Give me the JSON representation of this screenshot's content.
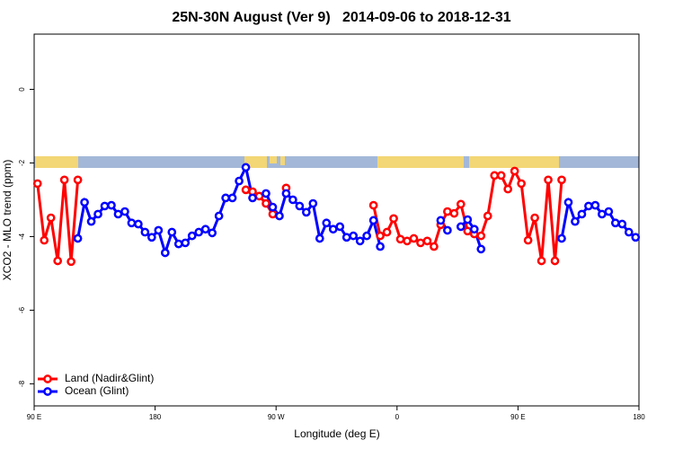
{
  "chart_data": {
    "type": "line",
    "title": "25N-30N August (Ver 9)   2014-09-06 to 2018-12-31",
    "x_label": "Longitude (deg E)",
    "y_label": "XCO2 - MLO trend (ppm)",
    "x": [
      92.5,
      97.5,
      102.5,
      107.5,
      112.5,
      117.5,
      122.5,
      127.5,
      132.5,
      137.5,
      142.5,
      147.5,
      152.5,
      157.5,
      162.5,
      167.5,
      172.5,
      177.5,
      182.5,
      187.5,
      192.5,
      197.5,
      202.5,
      207.5,
      212.5,
      217.5,
      222.5,
      227.5,
      232.5,
      237.5,
      242.5,
      247.5,
      252.5,
      257.5,
      262.5,
      267.5,
      272.5,
      277.5,
      282.5,
      287.5,
      292.5,
      297.5,
      302.5,
      307.5,
      312.5,
      317.5,
      322.5,
      327.5,
      332.5,
      337.5,
      342.5,
      347.5,
      352.5,
      357.5,
      362.5,
      367.5,
      372.5,
      377.5,
      382.5,
      387.5,
      392.5,
      397.5,
      402.5,
      407.5,
      412.5,
      417.5,
      422.5,
      427.5,
      432.5,
      437.5,
      442.5,
      447.5,
      452.5,
      457.5,
      462.5,
      467.5,
      472.5,
      477.5,
      482.5,
      487.5,
      492.5,
      497.5,
      502.5,
      507.5,
      512.5,
      517.5,
      522.5,
      527.5,
      532.5,
      537.5
    ],
    "series": [
      {
        "name": "Land (Nadir&Glint)",
        "color": "#ff0000",
        "values": [
          -2.56,
          -4.1,
          -3.49,
          -4.66,
          -2.46,
          -4.68,
          -2.46,
          null,
          null,
          null,
          null,
          null,
          null,
          null,
          null,
          null,
          null,
          null,
          null,
          null,
          null,
          null,
          null,
          null,
          null,
          null,
          null,
          null,
          null,
          null,
          null,
          -2.73,
          -2.78,
          -2.9,
          -3.1,
          -3.39,
          null,
          -2.68,
          null,
          null,
          null,
          null,
          null,
          null,
          null,
          null,
          null,
          null,
          null,
          null,
          -3.15,
          -3.98,
          -3.88,
          -3.51,
          -4.07,
          -4.12,
          -4.05,
          -4.17,
          -4.12,
          -4.27,
          -3.68,
          -3.32,
          -3.37,
          -3.12,
          -3.85,
          -3.93,
          -3.98,
          -3.44,
          -2.34,
          -2.34,
          -2.71,
          -2.22,
          -2.56,
          -4.1,
          -3.49,
          -4.66,
          -2.46,
          -4.66,
          -2.46,
          null,
          null,
          null,
          null,
          null,
          null,
          null,
          null,
          null,
          null,
          null
        ]
      },
      {
        "name": "Ocean (Glint)",
        "color": "#0000ff",
        "values": [
          null,
          null,
          null,
          null,
          null,
          null,
          -4.05,
          -3.07,
          -3.59,
          -3.39,
          -3.17,
          -3.15,
          -3.39,
          -3.32,
          -3.63,
          -3.66,
          -3.88,
          -4.02,
          -3.83,
          -4.44,
          -3.88,
          -4.2,
          -4.17,
          -3.98,
          -3.88,
          -3.8,
          -3.9,
          -3.44,
          -2.95,
          -2.95,
          -2.49,
          -2.12,
          -2.95,
          null,
          -2.83,
          -3.2,
          -3.44,
          -2.83,
          -3.0,
          -3.17,
          -3.34,
          -3.1,
          -4.05,
          -3.63,
          -3.8,
          -3.73,
          -4.02,
          -3.98,
          -4.12,
          -3.98,
          -3.56,
          -4.27,
          null,
          null,
          null,
          null,
          null,
          null,
          null,
          null,
          -3.56,
          -3.83,
          null,
          -3.73,
          -3.54,
          -3.8,
          -4.34,
          null,
          null,
          null,
          null,
          null,
          null,
          null,
          null,
          null,
          null,
          null,
          -4.05,
          -3.07,
          -3.59,
          -3.39,
          -3.17,
          -3.15,
          -3.39,
          -3.32,
          -3.63,
          -3.66,
          -3.88,
          -4.02
        ]
      }
    ],
    "xlim": [
      90,
      540
    ],
    "ylim": [
      -8.6,
      1.5
    ],
    "xticks": [
      {
        "value": 90,
        "label": "90 E"
      },
      180,
      {
        "value": 270,
        "label": "90 W"
      },
      {
        "value": 360,
        "label": "0"
      },
      {
        "value": 450,
        "label": "90 E"
      },
      {
        "value": 540,
        "label": "180"
      }
    ],
    "yticks": [
      0,
      -2,
      -4,
      -6,
      -8
    ],
    "legend": "bottomleft"
  }
}
